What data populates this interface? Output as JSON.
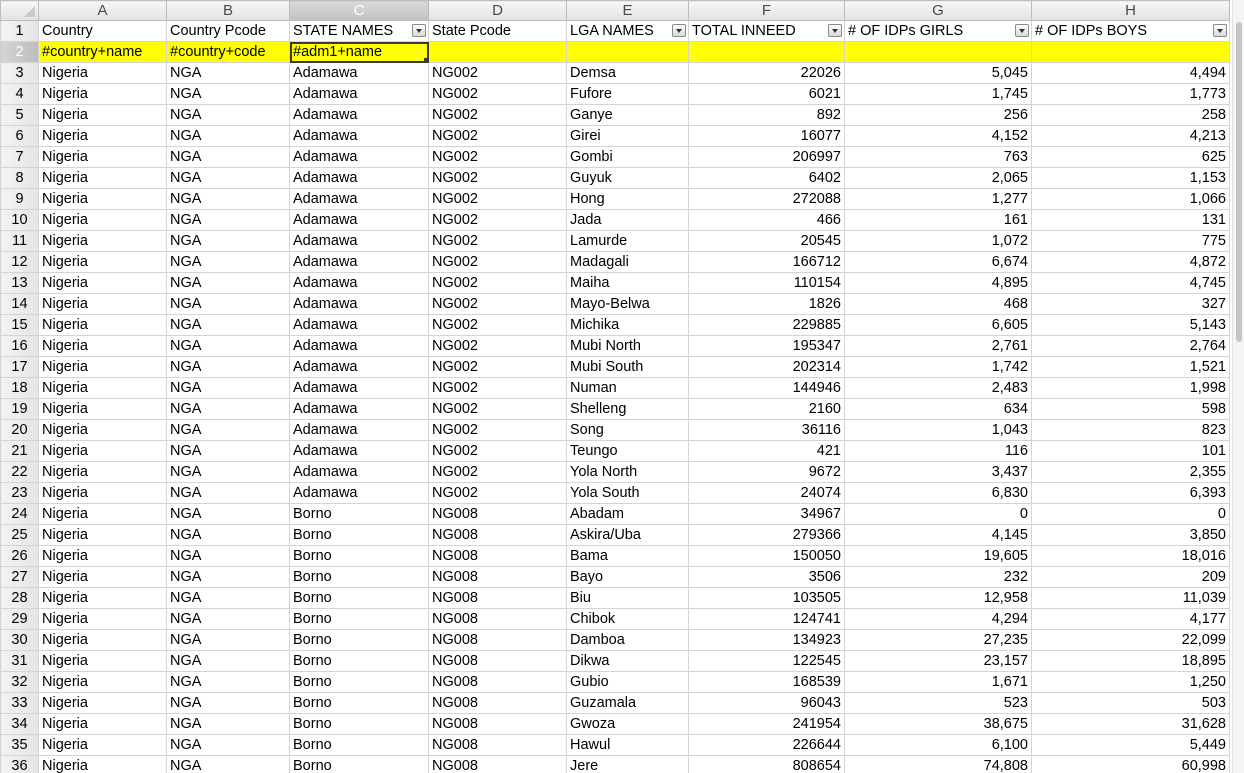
{
  "columns": [
    "A",
    "B",
    "C",
    "D",
    "E",
    "F",
    "G",
    "H"
  ],
  "selected_column": "C",
  "header_row": [
    "Country",
    "Country Pcode",
    "STATE NAMES",
    "State Pcode",
    "LGA NAMES",
    "TOTAL INNEED",
    "# OF IDPs GIRLS",
    "# OF IDPs BOYS"
  ],
  "filter_columns": [
    2,
    4,
    5,
    6,
    7
  ],
  "tag_row": [
    "#country+name",
    "#country+code",
    "#adm1+name",
    "",
    "",
    "",
    "",
    ""
  ],
  "rows": [
    [
      "Nigeria",
      "NGA",
      "Adamawa",
      "NG002",
      "Demsa",
      "22026",
      "5,045",
      "4,494"
    ],
    [
      "Nigeria",
      "NGA",
      "Adamawa",
      "NG002",
      "Fufore",
      "6021",
      "1,745",
      "1,773"
    ],
    [
      "Nigeria",
      "NGA",
      "Adamawa",
      "NG002",
      "Ganye",
      "892",
      "256",
      "258"
    ],
    [
      "Nigeria",
      "NGA",
      "Adamawa",
      "NG002",
      "Girei",
      "16077",
      "4,152",
      "4,213"
    ],
    [
      "Nigeria",
      "NGA",
      "Adamawa",
      "NG002",
      "Gombi",
      "206997",
      "763",
      "625"
    ],
    [
      "Nigeria",
      "NGA",
      "Adamawa",
      "NG002",
      "Guyuk",
      "6402",
      "2,065",
      "1,153"
    ],
    [
      "Nigeria",
      "NGA",
      "Adamawa",
      "NG002",
      "Hong",
      "272088",
      "1,277",
      "1,066"
    ],
    [
      "Nigeria",
      "NGA",
      "Adamawa",
      "NG002",
      "Jada",
      "466",
      "161",
      "131"
    ],
    [
      "Nigeria",
      "NGA",
      "Adamawa",
      "NG002",
      "Lamurde",
      "20545",
      "1,072",
      "775"
    ],
    [
      "Nigeria",
      "NGA",
      "Adamawa",
      "NG002",
      "Madagali",
      "166712",
      "6,674",
      "4,872"
    ],
    [
      "Nigeria",
      "NGA",
      "Adamawa",
      "NG002",
      "Maiha",
      "110154",
      "4,895",
      "4,745"
    ],
    [
      "Nigeria",
      "NGA",
      "Adamawa",
      "NG002",
      "Mayo-Belwa",
      "1826",
      "468",
      "327"
    ],
    [
      "Nigeria",
      "NGA",
      "Adamawa",
      "NG002",
      "Michika",
      "229885",
      "6,605",
      "5,143"
    ],
    [
      "Nigeria",
      "NGA",
      "Adamawa",
      "NG002",
      "Mubi North",
      "195347",
      "2,761",
      "2,764"
    ],
    [
      "Nigeria",
      "NGA",
      "Adamawa",
      "NG002",
      "Mubi South",
      "202314",
      "1,742",
      "1,521"
    ],
    [
      "Nigeria",
      "NGA",
      "Adamawa",
      "NG002",
      "Numan",
      "144946",
      "2,483",
      "1,998"
    ],
    [
      "Nigeria",
      "NGA",
      "Adamawa",
      "NG002",
      "Shelleng",
      "2160",
      "634",
      "598"
    ],
    [
      "Nigeria",
      "NGA",
      "Adamawa",
      "NG002",
      "Song",
      "36116",
      "1,043",
      "823"
    ],
    [
      "Nigeria",
      "NGA",
      "Adamawa",
      "NG002",
      "Teungo",
      "421",
      "116",
      "101"
    ],
    [
      "Nigeria",
      "NGA",
      "Adamawa",
      "NG002",
      "Yola North",
      "9672",
      "3,437",
      "2,355"
    ],
    [
      "Nigeria",
      "NGA",
      "Adamawa",
      "NG002",
      "Yola South",
      "24074",
      "6,830",
      "6,393"
    ],
    [
      "Nigeria",
      "NGA",
      "Borno",
      "NG008",
      "Abadam",
      "34967",
      "0",
      "0"
    ],
    [
      "Nigeria",
      "NGA",
      "Borno",
      "NG008",
      "Askira/Uba",
      "279366",
      "4,145",
      "3,850"
    ],
    [
      "Nigeria",
      "NGA",
      "Borno",
      "NG008",
      "Bama",
      "150050",
      "19,605",
      "18,016"
    ],
    [
      "Nigeria",
      "NGA",
      "Borno",
      "NG008",
      "Bayo",
      "3506",
      "232",
      "209"
    ],
    [
      "Nigeria",
      "NGA",
      "Borno",
      "NG008",
      "Biu",
      "103505",
      "12,958",
      "11,039"
    ],
    [
      "Nigeria",
      "NGA",
      "Borno",
      "NG008",
      "Chibok",
      "124741",
      "4,294",
      "4,177"
    ],
    [
      "Nigeria",
      "NGA",
      "Borno",
      "NG008",
      "Damboa",
      "134923",
      "27,235",
      "22,099"
    ],
    [
      "Nigeria",
      "NGA",
      "Borno",
      "NG008",
      "Dikwa",
      "122545",
      "23,157",
      "18,895"
    ],
    [
      "Nigeria",
      "NGA",
      "Borno",
      "NG008",
      "Gubio",
      "168539",
      "1,671",
      "1,250"
    ],
    [
      "Nigeria",
      "NGA",
      "Borno",
      "NG008",
      "Guzamala",
      "96043",
      "523",
      "503"
    ],
    [
      "Nigeria",
      "NGA",
      "Borno",
      "NG008",
      "Gwoza",
      "241954",
      "38,675",
      "31,628"
    ],
    [
      "Nigeria",
      "NGA",
      "Borno",
      "NG008",
      "Hawul",
      "226644",
      "6,100",
      "5,449"
    ],
    [
      "Nigeria",
      "NGA",
      "Borno",
      "NG008",
      "Jere",
      "808654",
      "74,808",
      "60,998"
    ]
  ],
  "colors": {
    "tag_row_fill": "#ffff00",
    "blue_header_text": "#2a6ebd",
    "grid_line": "#d4d4d4"
  }
}
